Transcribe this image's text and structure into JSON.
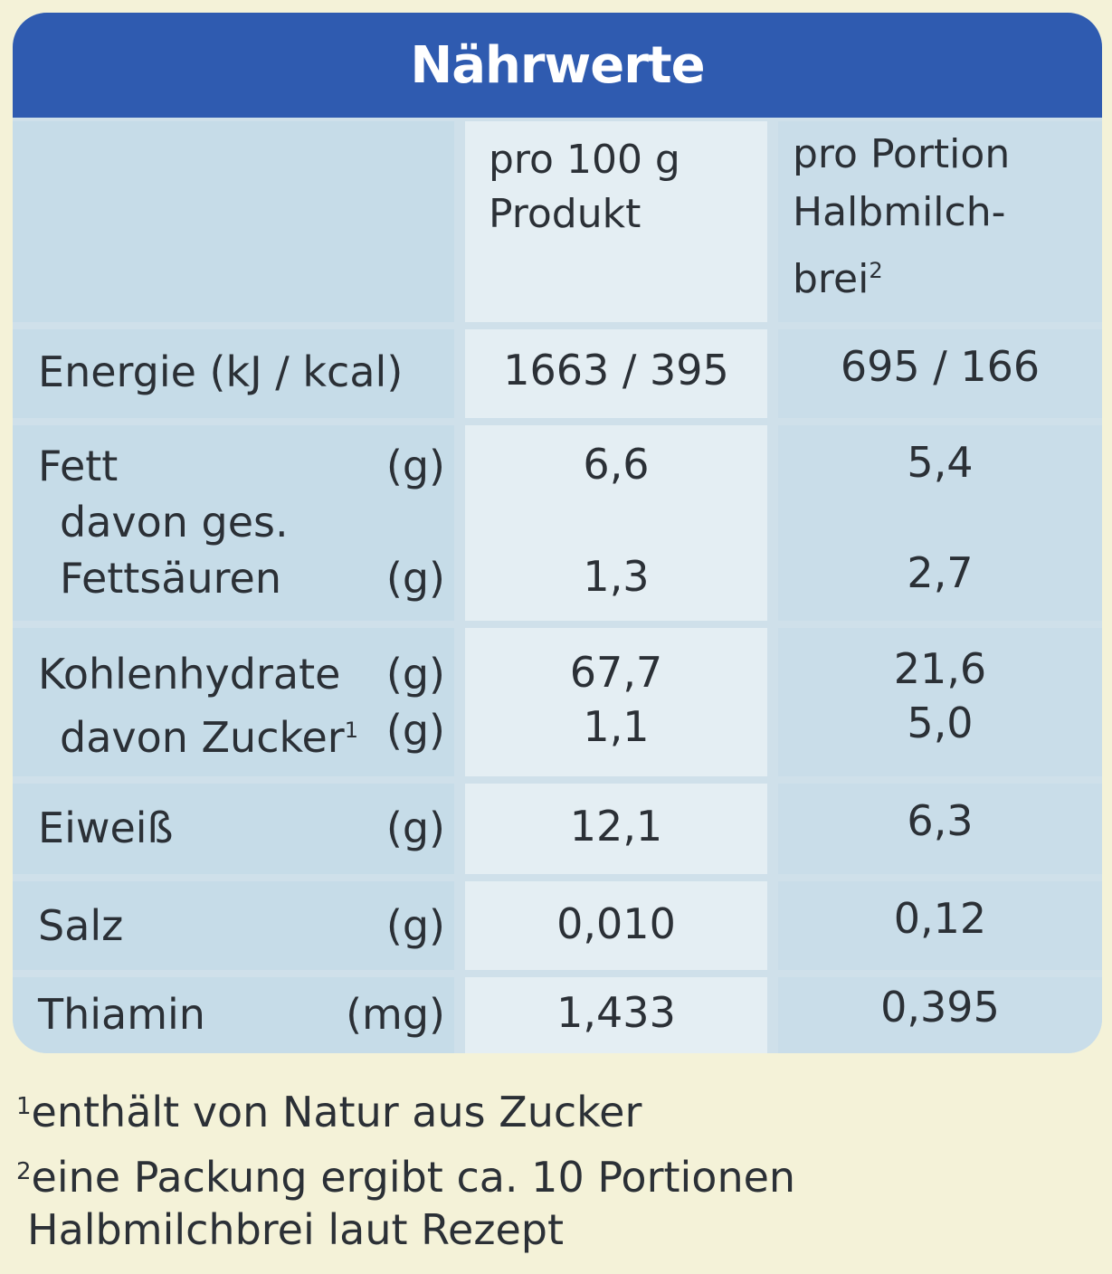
{
  "title": "Nährwerte",
  "headers": {
    "col1": [
      "pro 100 g",
      "Produkt"
    ],
    "col2": [
      "pro Portion",
      "Halbmilch-",
      "brei"
    ],
    "col2_footnote_mark": "2"
  },
  "rows": {
    "energie": {
      "label": "Energie (kJ / kcal)",
      "v1": "1663 / 395",
      "v2": "695 / 166"
    },
    "fett": {
      "label": "Fett",
      "unit": "(g)",
      "v1": "6,6",
      "v2": "5,4"
    },
    "fett_ges_a": {
      "label": "davon ges."
    },
    "fett_ges_b": {
      "label": "Fettsäuren",
      "unit": "(g)",
      "v1": "1,3",
      "v2": "2,7"
    },
    "kh": {
      "label": "Kohlenhydrate",
      "unit": "(g)",
      "v1": "67,7",
      "v2": "21,6"
    },
    "zucker": {
      "label": "davon Zucker",
      "mark": "1",
      "unit": "(g)",
      "v1": "1,1",
      "v2": "5,0"
    },
    "eiweiss": {
      "label": "Eiweiß",
      "unit": "(g)",
      "v1": "12,1",
      "v2": "6,3"
    },
    "salz": {
      "label": "Salz",
      "unit": "(g)",
      "v1": "0,010",
      "v2": "0,12"
    },
    "thiamin": {
      "label": "Thiamin",
      "unit": "(mg)",
      "v1": "1,433",
      "v2": "0,395"
    }
  },
  "footnotes": {
    "fn1_mark": "1",
    "fn1": "enthält von Natur aus Zucker",
    "fn2_mark": "2",
    "fn2": "eine Packung ergibt ca. 10 Portionen",
    "fn2_cont": "Halbmilchbrei laut Rezept"
  }
}
